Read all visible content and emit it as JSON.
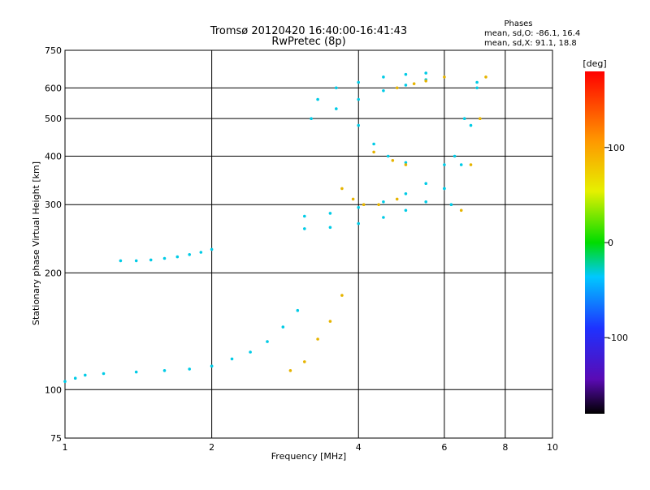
{
  "chart_data": {
    "type": "scatter",
    "title": "Tromsø 20120420 16:40:00-16:41:43",
    "subtitle": "RwPretec (8p)",
    "xlabel": "Frequency [MHz]",
    "ylabel": "Stationary phase Virtual Height [km]",
    "xscale": "log",
    "yscale": "log",
    "xlim": [
      1,
      10
    ],
    "ylim": [
      75,
      750
    ],
    "x_ticks": [
      "1",
      "2",
      "4",
      "6",
      "8",
      "10"
    ],
    "y_ticks": [
      "75",
      "100",
      "200",
      "300",
      "400",
      "500",
      "600",
      "750"
    ],
    "grid": true,
    "legend": {
      "title": "Phases",
      "entries": [
        "mean, sd,O: -86.1, 16.4",
        "mean, sd,X:  91.1, 18.8"
      ],
      "placement": "top-right"
    },
    "colorbar": {
      "label": "[deg]",
      "ticks": [
        "100",
        "0",
        "-100"
      ],
      "range": [
        -180,
        180
      ],
      "colormap": "rainbow"
    },
    "series": [
      {
        "mode": "O",
        "phase_deg": -100,
        "traces": [
          {
            "x": [
              1.0,
              1.05,
              1.1,
              1.2,
              1.4,
              1.6,
              1.8,
              2.0
            ],
            "y": [
              105,
              107,
              109,
              110,
              111,
              112,
              113,
              115
            ]
          },
          {
            "x": [
              1.3,
              1.4,
              1.5,
              1.6,
              1.7,
              1.8,
              1.9,
              2.0
            ],
            "y": [
              215,
              215,
              216,
              218,
              220,
              223,
              226,
              230
            ]
          },
          {
            "x": [
              2.0,
              2.2,
              2.4,
              2.6,
              2.8,
              3.0
            ],
            "y": [
              115,
              120,
              125,
              133,
              145,
              160
            ]
          },
          {
            "x": [
              3.1,
              3.5,
              4.0,
              4.5,
              5.0,
              5.5,
              6.0
            ],
            "y": [
              260,
              262,
              268,
              278,
              290,
              305,
              330
            ]
          },
          {
            "x": [
              3.1,
              3.5,
              4.0,
              4.5,
              5.0,
              5.5,
              6.0
            ],
            "y": [
              280,
              285,
              295,
              305,
              320,
              340,
              380
            ]
          },
          {
            "x": [
              3.2,
              3.6,
              4.0,
              4.5,
              5.0,
              5.5
            ],
            "y": [
              500,
              530,
              560,
              590,
              610,
              630
            ]
          },
          {
            "x": [
              3.3,
              3.6,
              4.0,
              4.5,
              5.0,
              5.5
            ],
            "y": [
              560,
              600,
              620,
              640,
              650,
              655
            ]
          },
          {
            "x": [
              4.0,
              4.3,
              4.6,
              5.0
            ],
            "y": [
              480,
              430,
              400,
              385
            ]
          },
          {
            "x": [
              6.0,
              6.3,
              6.6,
              7.0
            ],
            "y": [
              330,
              400,
              500,
              620
            ]
          },
          {
            "x": [
              6.2,
              6.5,
              6.8,
              7.0
            ],
            "y": [
              300,
              380,
              480,
              600
            ]
          }
        ]
      },
      {
        "mode": "X",
        "phase_deg": 110,
        "traces": [
          {
            "x": [
              2.9,
              3.1,
              3.3,
              3.5,
              3.7
            ],
            "y": [
              112,
              118,
              135,
              150,
              175
            ]
          },
          {
            "x": [
              3.7,
              3.9,
              4.1,
              4.4,
              4.8
            ],
            "y": [
              330,
              310,
              300,
              300,
              310
            ]
          },
          {
            "x": [
              4.3,
              4.7,
              5.0
            ],
            "y": [
              410,
              390,
              380
            ]
          },
          {
            "x": [
              6.5,
              6.8,
              7.1,
              7.3
            ],
            "y": [
              290,
              380,
              500,
              640
            ]
          },
          {
            "x": [
              4.8,
              5.2,
              5.5,
              6.0
            ],
            "y": [
              600,
              615,
              625,
              640
            ]
          }
        ]
      }
    ]
  }
}
